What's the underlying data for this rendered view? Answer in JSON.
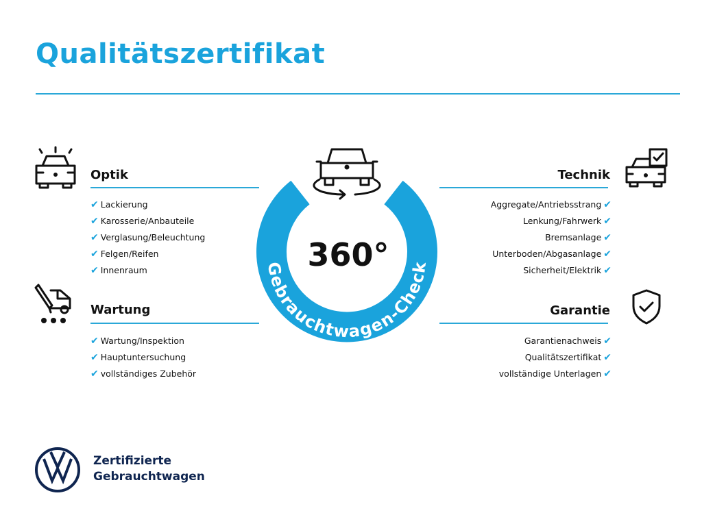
{
  "title": "Qualitätszertifikat",
  "center": {
    "degrees": "360°",
    "ring_text": "Gebrauchtwagen-Check"
  },
  "sections": {
    "optik": {
      "title": "Optik",
      "items": [
        "Lackierung",
        "Karosserie/Anbauteile",
        "Verglasung/Beleuchtung",
        "Felgen/Reifen",
        "Innenraum"
      ]
    },
    "wartung": {
      "title": "Wartung",
      "items": [
        "Wartung/Inspektion",
        "Hauptuntersuchung",
        "vollständiges Zubehör"
      ]
    },
    "technik": {
      "title": "Technik",
      "items": [
        "Aggregate/Antriebsstrang",
        "Lenkung/Fahrwerk",
        "Bremsanlage",
        "Unterboden/Abgasanlage",
        "Sicherheit/Elektrik"
      ]
    },
    "garantie": {
      "title": "Garantie",
      "items": [
        "Garantienachweis",
        "Qualitätszertifikat",
        "vollständige Unterlagen"
      ]
    }
  },
  "check_mark": "✔",
  "brand": {
    "line1": "Zertifizierte",
    "line2": "Gebrauchtwagen",
    "logo": "vw-logo"
  },
  "colors": {
    "accent": "#1aa3dc",
    "brand_navy": "#0f2550"
  }
}
